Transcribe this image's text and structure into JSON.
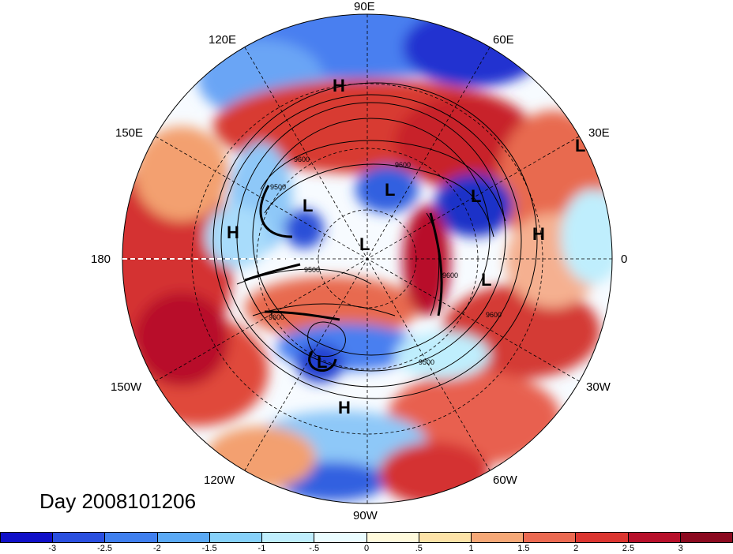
{
  "map": {
    "title": "Day 2008101206",
    "longitude_labels": {
      "lon_90E": "90E",
      "lon_60E": "60E",
      "lon_30E": "30E",
      "lon_0": "0",
      "lon_30W": "30W",
      "lon_60W": "60W",
      "lon_90W": "90W",
      "lon_120W": "120W",
      "lon_150W": "150W",
      "lon_180": "180",
      "lon_150E": "150E",
      "lon_120E": "120E"
    },
    "pressure_centers": [
      "H",
      "L",
      "L",
      "L",
      "H",
      "L",
      "H",
      "L",
      "L",
      "L",
      "H"
    ],
    "contour_labels": [
      "9500",
      "9600",
      "9600",
      "9500",
      "9600",
      "9600",
      "9500",
      "9600"
    ]
  },
  "colorbar": {
    "ticks": [
      "-3",
      "-2.5",
      "-2",
      "-1.5",
      "-1",
      "-.5",
      "0",
      ".5",
      "1",
      "1.5",
      "2",
      "2.5",
      "3"
    ],
    "colors": [
      "#1010c8",
      "#2a4fe0",
      "#3f7fef",
      "#5aa9f5",
      "#86d1fa",
      "#bfeefd",
      "#eafcff",
      "#fffadc",
      "#fde3a8",
      "#f6a877",
      "#ec6a52",
      "#dc3530",
      "#b8102a",
      "#8c0a20"
    ]
  }
}
